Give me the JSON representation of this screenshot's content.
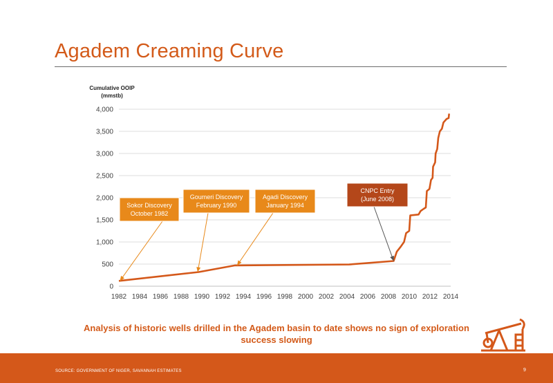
{
  "slide": {
    "title": "Agadem Creaming Curve",
    "conclusion": "Analysis of historic wells drilled in the Agadem basin to date shows no sign of exploration success slowing",
    "source": "SOURCE: GOVERNMENT OF NIGER, SAVANNAH ESTIMATES",
    "page_number": "9",
    "accent_color": "#d35a19"
  },
  "chart_data": {
    "type": "line",
    "ylabel": "Cumulative OOIP\n(mmstb)",
    "xlabel": "",
    "xlim": [
      1982,
      2014
    ],
    "ylim": [
      0,
      4000
    ],
    "x_ticks": [
      1982,
      1984,
      1986,
      1988,
      1990,
      1992,
      1994,
      1996,
      1998,
      2000,
      2002,
      2004,
      2006,
      2008,
      2010,
      2012,
      2014
    ],
    "y_ticks": [
      0,
      500,
      1000,
      1500,
      2000,
      2500,
      3000,
      3500,
      4000
    ],
    "y_tick_labels": [
      "0",
      "500",
      "1,000",
      "1,500",
      "2,000",
      "2,500",
      "3,000",
      "3,500",
      "4,000"
    ],
    "grid": "horizontal",
    "series_color": "#d4581a",
    "series": [
      {
        "points": [
          [
            1982.0,
            120
          ],
          [
            1989.7,
            320
          ],
          [
            1993.2,
            470
          ],
          [
            2004.2,
            490
          ],
          [
            2008.5,
            570
          ],
          [
            2008.8,
            780
          ],
          [
            2009.2,
            900
          ],
          [
            2009.5,
            1000
          ],
          [
            2009.7,
            1200
          ],
          [
            2010.0,
            1250
          ],
          [
            2010.1,
            1600
          ],
          [
            2010.9,
            1620
          ],
          [
            2011.1,
            1700
          ],
          [
            2011.4,
            1750
          ],
          [
            2011.6,
            1780
          ],
          [
            2011.7,
            2150
          ],
          [
            2011.95,
            2200
          ],
          [
            2012.1,
            2400
          ],
          [
            2012.25,
            2450
          ],
          [
            2012.3,
            2700
          ],
          [
            2012.5,
            2800
          ],
          [
            2012.55,
            3000
          ],
          [
            2012.7,
            3100
          ],
          [
            2012.8,
            3350
          ],
          [
            2012.95,
            3500
          ],
          [
            2013.15,
            3560
          ],
          [
            2013.3,
            3700
          ],
          [
            2013.6,
            3780
          ],
          [
            2013.8,
            3800
          ],
          [
            2013.85,
            3900
          ]
        ]
      }
    ],
    "annotations": [
      {
        "text": "Sokor Discovery\nOctober 1982",
        "target": [
          1982.1,
          120
        ],
        "fill": "#e8891a"
      },
      {
        "text": "Goumeri Discovery\nFebruary 1990",
        "target": [
          1989.6,
          320
        ],
        "fill": "#e8891a"
      },
      {
        "text": "Agadi Discovery\nJanuary 1994",
        "target": [
          1993.4,
          470
        ],
        "fill": "#e8891a"
      },
      {
        "text": "CNPC Entry\n(June 2008)",
        "target": [
          2008.5,
          570
        ],
        "fill": "#b4471a"
      }
    ]
  }
}
